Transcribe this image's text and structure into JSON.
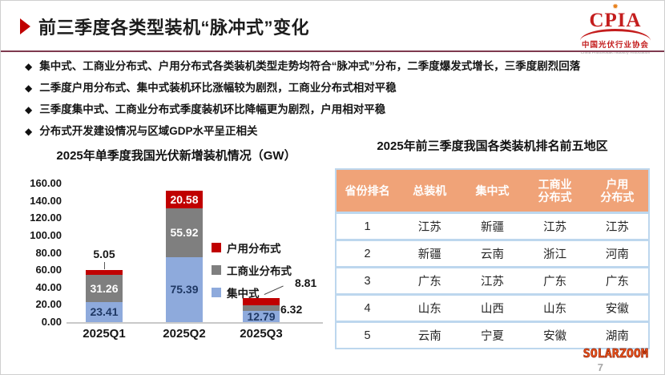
{
  "header": {
    "title": "前三季度各类型装机“脉冲式”变化",
    "logo": {
      "acronym": "CPIA",
      "org_cn": "中国光伏行业协会",
      "org_en": "China Photovoltaic Industry Association",
      "brand_color": "#C41E1E"
    }
  },
  "bullets": [
    "集中式、工商业分布式、户用分布式各类装机类型走势均符合“脉冲式”分布，二季度爆发式增长，三季度剧烈回落",
    "二季度户用分布式、集中式装机环比涨幅较为剧烈，工商业分布式相对平稳",
    "三季度集中式、工商业分布式季度装机环比降幅更为剧烈，户用相对平稳",
    "分布式开发建设情况与区域GDP水平呈正相关"
  ],
  "chart_data": {
    "type": "bar",
    "stacked": true,
    "title": "2025年单季度我国光伏新增装机情况（GW）",
    "unit": "GW",
    "categories": [
      "2025Q1",
      "2025Q2",
      "2025Q3"
    ],
    "ylim": [
      0,
      160
    ],
    "ytick_step": 20,
    "grid": false,
    "legend_position": "center-right",
    "legend_order": [
      "户用分布式",
      "工商业分布式",
      "集中式"
    ],
    "series": [
      {
        "name": "集中式",
        "color": "#8EAADC",
        "label_color": "#1F3864",
        "values": [
          23.41,
          75.39,
          12.79
        ],
        "label_placement": [
          "inside",
          "inside",
          "inside"
        ]
      },
      {
        "name": "工商业分布式",
        "color": "#7F7F7F",
        "label_color": "#FFFFFF",
        "values": [
          31.26,
          55.92,
          6.32
        ],
        "label_placement": [
          "inside",
          "inside",
          "right"
        ]
      },
      {
        "name": "户用分布式",
        "color": "#C00000",
        "label_color": "#FFFFFF",
        "values": [
          5.05,
          20.58,
          8.81
        ],
        "label_placement": [
          "above",
          "inside",
          "callout-right"
        ]
      }
    ]
  },
  "table": {
    "title": "2025年前三季度我国各类装机排名前五地区",
    "header_bg": "#F0A378",
    "border_color": "#BDD7EE",
    "columns": [
      "省份排名",
      "总装机",
      "集中式",
      "工商业\n分布式",
      "户用\n分布式"
    ],
    "rows": [
      [
        "1",
        "江苏",
        "新疆",
        "江苏",
        "江苏"
      ],
      [
        "2",
        "新疆",
        "云南",
        "浙江",
        "河南"
      ],
      [
        "3",
        "广东",
        "江苏",
        "广东",
        "广东"
      ],
      [
        "4",
        "山东",
        "山西",
        "山东",
        "安徽"
      ],
      [
        "5",
        "云南",
        "宁夏",
        "安徽",
        "湖南"
      ]
    ]
  },
  "footer": {
    "watermark": "SOLARZOOM",
    "page_number": "7"
  }
}
